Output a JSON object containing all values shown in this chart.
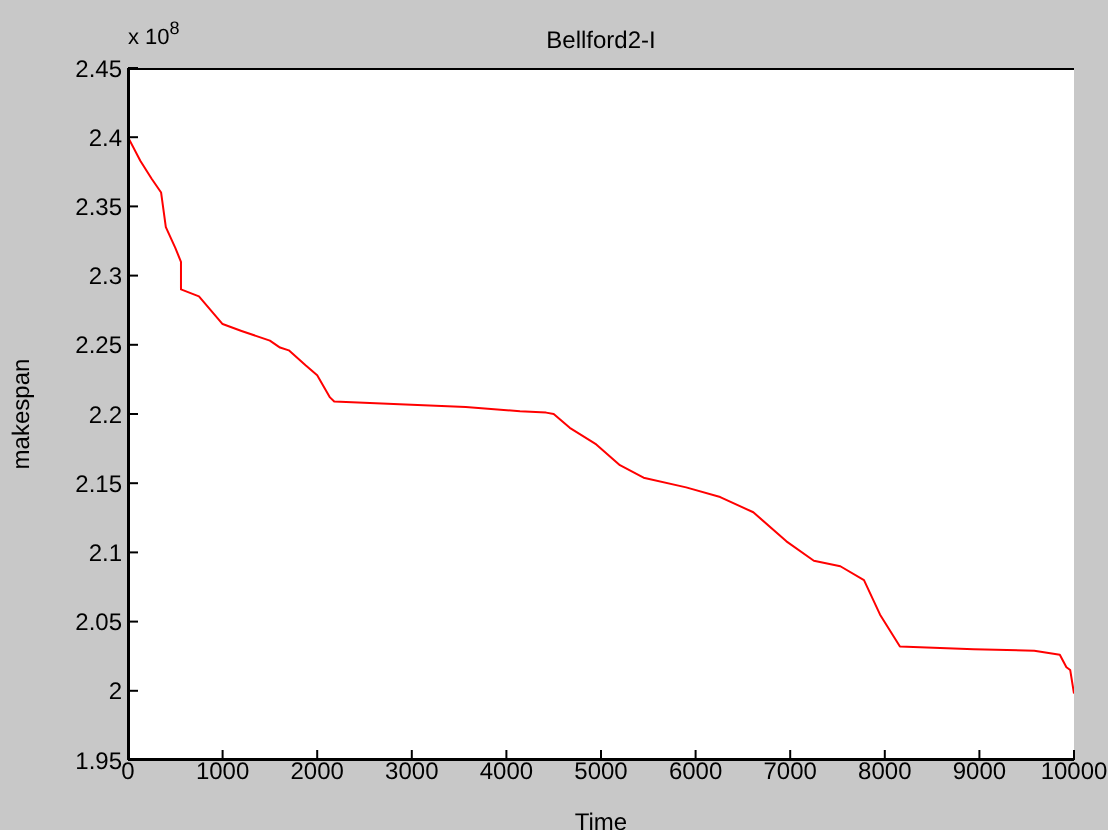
{
  "chart_data": {
    "type": "line",
    "title": "Bellford2-I",
    "xlabel": "Time",
    "ylabel": "makespan",
    "annotations": [
      "x 10$^{8}$"
    ],
    "x": [
      0,
      130,
      250,
      350,
      400,
      500,
      560,
      560,
      750,
      1000,
      1200,
      1500,
      1607,
      1700,
      1880,
      2000,
      2135,
      2180,
      2870,
      3570,
      4144,
      4420,
      4500,
      4670,
      4950,
      5200,
      5450,
      5900,
      6260,
      6610,
      6960,
      7250,
      7530,
      7780,
      7950,
      8160,
      8940,
      9580,
      9850,
      9920,
      9960,
      10000
    ],
    "series": [
      {
        "color": "#ff0000",
        "values": [
          2.4,
          2.383,
          2.37,
          2.36,
          2.335,
          2.32,
          2.31,
          2.29,
          2.285,
          2.265,
          2.26,
          2.253,
          2.248,
          2.246,
          2.235,
          2.228,
          2.212,
          2.209,
          2.207,
          2.205,
          2.202,
          2.201,
          2.2,
          2.19,
          2.178,
          2.163,
          2.154,
          2.147,
          2.14,
          2.129,
          2.108,
          2.094,
          2.09,
          2.08,
          2.055,
          2.032,
          2.03,
          2.029,
          2.026,
          2.017,
          2.015,
          1.998
        ]
      }
    ],
    "xlim": [
      0,
      10000
    ],
    "xticks": [
      0,
      1000,
      2000,
      3000,
      4000,
      5000,
      6000,
      7000,
      8000,
      9000,
      10000
    ],
    "ylim": [
      1.95,
      2.45
    ],
    "yticks": [
      1.95,
      2,
      2.05,
      2.1,
      2.15,
      2.2,
      2.25,
      2.3,
      2.35,
      2.4,
      2.45
    ],
    "grid": false,
    "legend": false,
    "marker": "none",
    "line_style": "solid"
  }
}
